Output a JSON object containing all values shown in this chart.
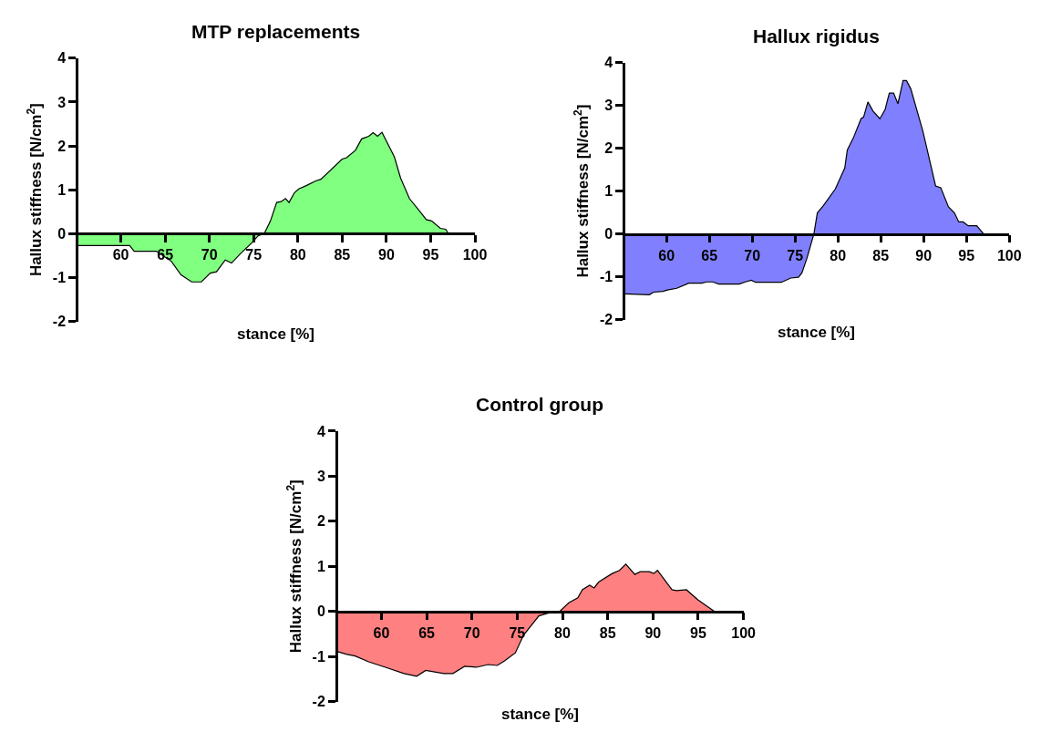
{
  "chart_data": [
    {
      "type": "area",
      "title": "MTP replacements",
      "xlabel": "stance [%]",
      "ylabel": "Hallux stiffness [N/cm$^{2}$]",
      "xlim": [
        55,
        100
      ],
      "xticks": [
        60,
        65,
        70,
        75,
        80,
        85,
        90,
        95,
        100
      ],
      "ylim": [
        -2,
        4
      ],
      "yticks": [
        -2,
        -1,
        0,
        1,
        2,
        3,
        4
      ],
      "grid": false,
      "x": [
        55,
        61,
        61.5,
        64,
        65.7,
        66.8,
        68,
        69.1,
        70.1,
        70.8,
        71.8,
        72.5,
        73.5,
        74.9,
        75.5,
        76.2,
        76.9,
        77.6,
        78.1,
        78.6,
        79,
        79.6,
        80.1,
        81,
        82,
        82.6,
        85,
        85.5,
        86.5,
        87.2,
        88,
        88.5,
        89,
        89.5,
        90.9,
        91.6,
        92.6,
        93.8,
        94.5,
        95.1,
        96.1,
        96.7,
        97
      ],
      "series": [
        {
          "color": "#80ff80",
          "values": [
            -0.27,
            -0.27,
            -0.4,
            -0.4,
            -0.63,
            -0.94,
            -1.1,
            -1.1,
            -0.9,
            -0.87,
            -0.6,
            -0.67,
            -0.46,
            -0.19,
            -0.05,
            0,
            0.29,
            0.71,
            0.73,
            0.8,
            0.71,
            0.93,
            1.02,
            1.1,
            1.2,
            1.24,
            1.7,
            1.73,
            1.9,
            2.16,
            2.22,
            2.3,
            2.22,
            2.31,
            1.75,
            1.27,
            0.8,
            0.5,
            0.32,
            0.29,
            0.12,
            0.1,
            0
          ]
        }
      ]
    },
    {
      "type": "area",
      "title": "Hallux rigidus",
      "xlabel": "stance [%]",
      "ylabel": "Hallux stiffness [N/cm$^{2}$]",
      "xlim": [
        55,
        100
      ],
      "xticks": [
        60,
        65,
        70,
        75,
        80,
        85,
        90,
        95,
        100
      ],
      "ylim": [
        -2,
        4
      ],
      "yticks": [
        -2,
        -1,
        0,
        1,
        2,
        3,
        4
      ],
      "grid": false,
      "x": [
        55.2,
        58,
        58.5,
        59.6,
        60.1,
        61.2,
        62.6,
        64.1,
        64.7,
        65.4,
        66.1,
        68.5,
        69.2,
        69.9,
        70.4,
        73.4,
        74.5,
        75.4,
        75.8,
        76.4,
        77.2,
        77.6,
        78.3,
        78.8,
        79.7,
        80.8,
        81.1,
        81.8,
        82.7,
        83,
        83.5,
        84.1,
        84.9,
        85.5,
        86,
        86.5,
        87,
        87.6,
        88,
        88.5,
        89.9,
        91.4,
        92,
        92.9,
        93.6,
        94.1,
        94.6,
        95.2,
        96.2,
        97
      ],
      "series": [
        {
          "color": "#8080ff",
          "values": [
            -1.4,
            -1.42,
            -1.36,
            -1.34,
            -1.31,
            -1.27,
            -1.15,
            -1.15,
            -1.12,
            -1.12,
            -1.17,
            -1.17,
            -1.12,
            -1.08,
            -1.13,
            -1.13,
            -1.03,
            -1.01,
            -0.91,
            -0.56,
            0,
            0.49,
            0.66,
            0.8,
            1.05,
            1.54,
            1.96,
            2.24,
            2.69,
            2.73,
            3.08,
            2.87,
            2.69,
            2.9,
            3.29,
            3.29,
            3.04,
            3.58,
            3.58,
            3.39,
            2.41,
            1.12,
            1.08,
            0.63,
            0.49,
            0.28,
            0.28,
            0.19,
            0.19,
            0
          ]
        }
      ]
    },
    {
      "type": "area",
      "title": "Control group",
      "xlabel": "stance [%]",
      "ylabel": "Hallux stiffness [N/cm$^{2}$]",
      "xlim": [
        55,
        100
      ],
      "xticks": [
        60,
        65,
        70,
        75,
        80,
        85,
        90,
        95,
        100
      ],
      "ylim": [
        -2,
        4
      ],
      "yticks": [
        -2,
        -1,
        0,
        1,
        2,
        3,
        4
      ],
      "grid": false,
      "x": [
        55.1,
        56.1,
        57.1,
        58.6,
        60.6,
        62.5,
        63.9,
        64.9,
        66.9,
        67.9,
        69.2,
        70.5,
        71.8,
        72.8,
        73.6,
        74.8,
        75.7,
        77.4,
        78.4,
        79.7,
        80.7,
        81.7,
        82.2,
        83,
        83.5,
        84,
        85.5,
        86.3,
        87,
        88,
        88.6,
        89.6,
        90.1,
        90.5,
        92.1,
        92.6,
        93.7,
        95,
        96,
        96.8
      ],
      "series": [
        {
          "color": "#ff8080",
          "values": [
            -0.89,
            -0.95,
            -0.99,
            -1.12,
            -1.25,
            -1.38,
            -1.44,
            -1.31,
            -1.38,
            -1.38,
            -1.22,
            -1.24,
            -1.18,
            -1.2,
            -1.1,
            -0.92,
            -0.53,
            -0.1,
            -0.04,
            0,
            0.19,
            0.3,
            0.48,
            0.58,
            0.52,
            0.65,
            0.84,
            0.91,
            1.05,
            0.82,
            0.88,
            0.88,
            0.84,
            0.91,
            0.48,
            0.46,
            0.48,
            0.25,
            0.11,
            0
          ]
        }
      ]
    }
  ]
}
